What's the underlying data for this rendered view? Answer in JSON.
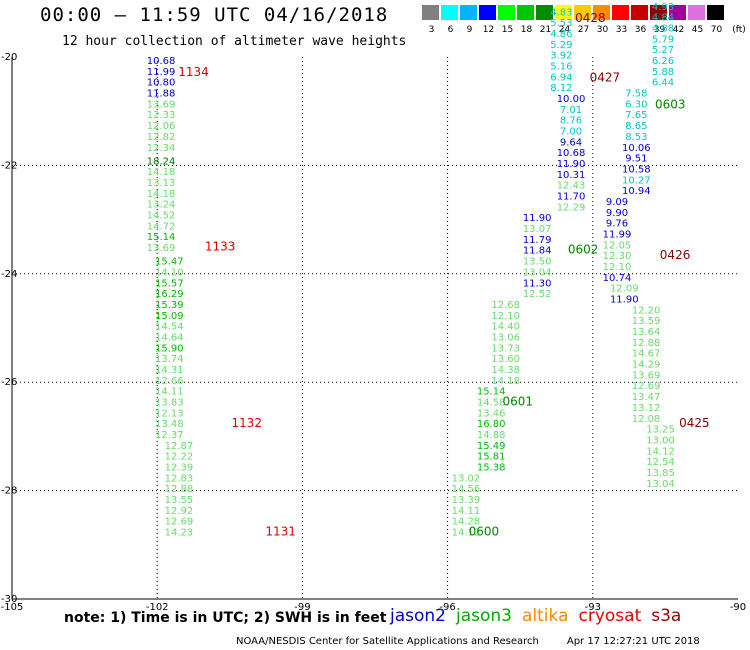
{
  "header": {
    "title": "00:00 – 11:59 UTC 04/16/2018",
    "subtitle": "12 hour collection of altimeter wave heights"
  },
  "color_scale": {
    "unit_label": "(ft)",
    "swatches": [
      {
        "label": "3",
        "color": "#808080"
      },
      {
        "label": "6",
        "color": "#00ffff"
      },
      {
        "label": "9",
        "color": "#00b4ff"
      },
      {
        "label": "12",
        "color": "#0000ff"
      },
      {
        "label": "15",
        "color": "#00ff00"
      },
      {
        "label": "18",
        "color": "#00c800"
      },
      {
        "label": "21",
        "color": "#008c00"
      },
      {
        "label": "24",
        "color": "#ffff00"
      },
      {
        "label": "27",
        "color": "#ffc800"
      },
      {
        "label": "30",
        "color": "#ff8c00"
      },
      {
        "label": "33",
        "color": "#ff0000"
      },
      {
        "label": "36",
        "color": "#c80000"
      },
      {
        "label": "39",
        "color": "#8c0000"
      },
      {
        "label": "42",
        "color": "#a000a0"
      },
      {
        "label": "45",
        "color": "#e070e0"
      },
      {
        "label": "70",
        "color": "#000000"
      }
    ]
  },
  "chart_data": {
    "type": "scatter",
    "xlim": [
      -105,
      -90
    ],
    "ylim": [
      -30,
      -20
    ],
    "x_ticks": [
      "-105",
      "-102",
      "-99",
      "-96",
      "-93",
      "-90"
    ],
    "y_ticks": [
      "-20",
      "-22",
      "-24",
      "-26",
      "-28",
      "-30"
    ],
    "colors": {
      "light": "#66dd66",
      "mid": "#00bb00",
      "dark": "#007700",
      "blue": "#0000cc",
      "cyan": "#00c8c8"
    },
    "tracks": [
      {
        "lon": -101.92,
        "points": [
          {
            "lat": -20.13,
            "v": "10.68",
            "c": "blue"
          },
          {
            "lat": -20.33,
            "v": "11.99",
            "c": "blue"
          },
          {
            "lat": -20.53,
            "v": "10.80",
            "c": "blue"
          },
          {
            "lat": -20.73,
            "v": "11.88",
            "c": "blue"
          },
          {
            "lat": -20.93,
            "v": "13.69",
            "c": "light"
          },
          {
            "lat": -21.13,
            "v": "12.33",
            "c": "light"
          },
          {
            "lat": -21.33,
            "v": "12.06",
            "c": "light"
          },
          {
            "lat": -21.53,
            "v": "12.82",
            "c": "light"
          },
          {
            "lat": -21.73,
            "v": "12.34",
            "c": "light"
          },
          {
            "lat": -21.98,
            "v": "18.24",
            "c": "dark"
          },
          {
            "lat": -22.18,
            "v": "14.18",
            "c": "light"
          },
          {
            "lat": -22.38,
            "v": "13.13",
            "c": "light"
          },
          {
            "lat": -22.58,
            "v": "14.18",
            "c": "light"
          },
          {
            "lat": -22.78,
            "v": "13.24",
            "c": "light"
          },
          {
            "lat": -22.98,
            "v": "14.52",
            "c": "light"
          },
          {
            "lat": -23.18,
            "v": "14.72",
            "c": "light"
          },
          {
            "lat": -23.38,
            "v": "15.14",
            "c": "mid"
          },
          {
            "lat": -23.58,
            "v": "13.69",
            "c": "light"
          }
        ]
      },
      {
        "lon": -101.75,
        "points": [
          {
            "lat": -23.83,
            "v": "15.47",
            "c": "mid"
          },
          {
            "lat": -24.03,
            "v": "14.10",
            "c": "light"
          },
          {
            "lat": -24.23,
            "v": "15.57",
            "c": "mid"
          },
          {
            "lat": -24.43,
            "v": "16.29",
            "c": "mid"
          },
          {
            "lat": -24.63,
            "v": "15.39",
            "c": "mid"
          },
          {
            "lat": -24.83,
            "v": "15.09",
            "c": "mid"
          },
          {
            "lat": -25.03,
            "v": "14.54",
            "c": "light"
          },
          {
            "lat": -25.23,
            "v": "14.64",
            "c": "light"
          },
          {
            "lat": -25.43,
            "v": "15.90",
            "c": "mid"
          },
          {
            "lat": -25.63,
            "v": "13.74",
            "c": "light"
          },
          {
            "lat": -25.83,
            "v": "14.31",
            "c": "light"
          },
          {
            "lat": -26.03,
            "v": "12.66",
            "c": "light"
          },
          {
            "lat": -26.23,
            "v": "14.11",
            "c": "light"
          },
          {
            "lat": -26.43,
            "v": "13.83",
            "c": "light"
          },
          {
            "lat": -26.63,
            "v": "12.13",
            "c": "light"
          },
          {
            "lat": -26.83,
            "v": "13.48",
            "c": "light"
          },
          {
            "lat": -27.03,
            "v": "12.37",
            "c": "light"
          }
        ]
      },
      {
        "lon": -101.55,
        "points": [
          {
            "lat": -27.23,
            "v": "12.87",
            "c": "light"
          },
          {
            "lat": -27.43,
            "v": "12.22",
            "c": "light"
          },
          {
            "lat": -27.63,
            "v": "12.39",
            "c": "light"
          },
          {
            "lat": -27.83,
            "v": "12.83",
            "c": "light"
          },
          {
            "lat": -28.03,
            "v": "12.88",
            "c": "light"
          },
          {
            "lat": -28.23,
            "v": "13.55",
            "c": "light"
          },
          {
            "lat": -28.43,
            "v": "12.92",
            "c": "light"
          },
          {
            "lat": -28.63,
            "v": "12.69",
            "c": "light"
          },
          {
            "lat": -28.83,
            "v": "14.23",
            "c": "light"
          }
        ]
      },
      {
        "lon": -95.62,
        "points": [
          {
            "lat": -28.83,
            "v": "14.12",
            "c": "light"
          },
          {
            "lat": -28.63,
            "v": "14.28",
            "c": "light"
          },
          {
            "lat": -28.43,
            "v": "14.11",
            "c": "light"
          },
          {
            "lat": -28.23,
            "v": "13.39",
            "c": "light"
          },
          {
            "lat": -28.03,
            "v": "14.56",
            "c": "light"
          },
          {
            "lat": -27.83,
            "v": "13.02",
            "c": "light"
          }
        ]
      },
      {
        "lon": -95.1,
        "points": [
          {
            "lat": -27.63,
            "v": "15.38",
            "c": "mid"
          },
          {
            "lat": -27.43,
            "v": "15.81",
            "c": "mid"
          },
          {
            "lat": -27.23,
            "v": "15.49",
            "c": "mid"
          },
          {
            "lat": -27.03,
            "v": "14.88",
            "c": "light"
          },
          {
            "lat": -26.83,
            "v": "16.80",
            "c": "mid"
          },
          {
            "lat": -26.63,
            "v": "13.46",
            "c": "light"
          },
          {
            "lat": -26.43,
            "v": "14.58",
            "c": "light"
          },
          {
            "lat": -26.23,
            "v": "15.14",
            "c": "mid"
          }
        ]
      },
      {
        "lon": -94.8,
        "points": [
          {
            "lat": -26.03,
            "v": "14.18",
            "c": "light"
          },
          {
            "lat": -25.83,
            "v": "14.38",
            "c": "light"
          },
          {
            "lat": -25.63,
            "v": "13.60",
            "c": "light"
          },
          {
            "lat": -25.43,
            "v": "13.73",
            "c": "light"
          },
          {
            "lat": -25.23,
            "v": "13.06",
            "c": "light"
          },
          {
            "lat": -25.03,
            "v": "14.40",
            "c": "light"
          },
          {
            "lat": -24.83,
            "v": "12.10",
            "c": "light"
          },
          {
            "lat": -24.63,
            "v": "12.68",
            "c": "light"
          }
        ]
      },
      {
        "lon": -94.15,
        "points": [
          {
            "lat": -24.43,
            "v": "12.52",
            "c": "light"
          },
          {
            "lat": -24.23,
            "v": "11.30",
            "c": "blue"
          },
          {
            "lat": -24.03,
            "v": "13.04",
            "c": "light"
          },
          {
            "lat": -23.83,
            "v": "13.50",
            "c": "light"
          },
          {
            "lat": -23.63,
            "v": "11.84",
            "c": "blue"
          },
          {
            "lat": -23.43,
            "v": "11.79",
            "c": "blue"
          },
          {
            "lat": -23.23,
            "v": "13.07",
            "c": "light"
          },
          {
            "lat": -23.03,
            "v": "11.90",
            "c": "blue"
          }
        ]
      },
      {
        "lon": -93.45,
        "points": [
          {
            "lat": -22.83,
            "v": "12.29",
            "c": "light"
          },
          {
            "lat": -22.63,
            "v": "11.70",
            "c": "blue"
          },
          {
            "lat": -22.43,
            "v": "12.43",
            "c": "light"
          },
          {
            "lat": -22.23,
            "v": "10.31",
            "c": "blue"
          },
          {
            "lat": -22.03,
            "v": "11.90",
            "c": "blue"
          },
          {
            "lat": -21.83,
            "v": "10.68",
            "c": "blue"
          },
          {
            "lat": -21.63,
            "v": "9.64",
            "c": "blue"
          },
          {
            "lat": -21.43,
            "v": "7.00",
            "c": "cyan"
          },
          {
            "lat": -21.23,
            "v": "8.76",
            "c": "cyan"
          },
          {
            "lat": -21.03,
            "v": "7.01",
            "c": "cyan"
          },
          {
            "lat": -20.83,
            "v": "10.00",
            "c": "blue"
          }
        ]
      },
      {
        "lon": -93.65,
        "points": [
          {
            "lat": -20.63,
            "v": "8.12",
            "c": "cyan"
          },
          {
            "lat": -20.43,
            "v": "6.94",
            "c": "cyan"
          },
          {
            "lat": -20.23,
            "v": "5.16",
            "c": "cyan"
          },
          {
            "lat": -20.03,
            "v": "3.92",
            "c": "cyan"
          },
          {
            "lat": -19.83,
            "v": "5.29",
            "c": "cyan"
          },
          {
            "lat": -19.63,
            "v": "4.86",
            "c": "cyan"
          },
          {
            "lat": -19.43,
            "v": "5.53",
            "c": "cyan"
          },
          {
            "lat": -19.23,
            "v": "4.83",
            "c": "cyan"
          }
        ]
      },
      {
        "lon": -91.55,
        "points": [
          {
            "lat": -19.13,
            "v": "4.93",
            "c": "cyan"
          },
          {
            "lat": -19.33,
            "v": "4.84",
            "c": "cyan"
          },
          {
            "lat": -19.53,
            "v": "4.88",
            "c": "cyan"
          },
          {
            "lat": -19.73,
            "v": "5.79",
            "c": "cyan"
          },
          {
            "lat": -19.93,
            "v": "5.27",
            "c": "cyan"
          },
          {
            "lat": -20.13,
            "v": "6.26",
            "c": "cyan"
          },
          {
            "lat": -20.33,
            "v": "5.88",
            "c": "cyan"
          },
          {
            "lat": -20.53,
            "v": "6.44",
            "c": "cyan"
          }
        ]
      },
      {
        "lon": -92.1,
        "points": [
          {
            "lat": -20.73,
            "v": "7.58",
            "c": "cyan"
          },
          {
            "lat": -20.93,
            "v": "6.30",
            "c": "cyan"
          },
          {
            "lat": -21.13,
            "v": "7.65",
            "c": "cyan"
          },
          {
            "lat": -21.33,
            "v": "8.65",
            "c": "cyan"
          },
          {
            "lat": -21.53,
            "v": "8.53",
            "c": "cyan"
          },
          {
            "lat": -21.73,
            "v": "10.06",
            "c": "blue"
          },
          {
            "lat": -21.93,
            "v": "9.51",
            "c": "blue"
          },
          {
            "lat": -22.13,
            "v": "10.58",
            "c": "blue"
          },
          {
            "lat": -22.33,
            "v": "10.27",
            "c": "cyan"
          },
          {
            "lat": -22.53,
            "v": "10.94",
            "c": "blue"
          }
        ]
      },
      {
        "lon": -92.5,
        "points": [
          {
            "lat": -22.73,
            "v": "9.09",
            "c": "blue"
          },
          {
            "lat": -22.93,
            "v": "9.90",
            "c": "blue"
          },
          {
            "lat": -23.13,
            "v": "9.76",
            "c": "blue"
          },
          {
            "lat": -23.33,
            "v": "11.99",
            "c": "blue"
          },
          {
            "lat": -23.53,
            "v": "12.05",
            "c": "light"
          },
          {
            "lat": -23.73,
            "v": "12.30",
            "c": "light"
          },
          {
            "lat": -23.93,
            "v": "12.10",
            "c": "light"
          },
          {
            "lat": -24.13,
            "v": "10.74",
            "c": "blue"
          }
        ]
      },
      {
        "lon": -92.35,
        "points": [
          {
            "lat": -24.33,
            "v": "12.09",
            "c": "light"
          },
          {
            "lat": -24.53,
            "v": "11.90",
            "c": "blue"
          }
        ]
      },
      {
        "lon": -91.9,
        "points": [
          {
            "lat": -24.73,
            "v": "12.20",
            "c": "light"
          },
          {
            "lat": -24.93,
            "v": "13.59",
            "c": "light"
          },
          {
            "lat": -25.13,
            "v": "13.64",
            "c": "light"
          },
          {
            "lat": -25.33,
            "v": "12.88",
            "c": "light"
          },
          {
            "lat": -25.53,
            "v": "14.67",
            "c": "light"
          },
          {
            "lat": -25.73,
            "v": "14.29",
            "c": "light"
          },
          {
            "lat": -25.93,
            "v": "13.69",
            "c": "light"
          },
          {
            "lat": -26.13,
            "v": "12.69",
            "c": "light"
          },
          {
            "lat": -26.33,
            "v": "13.47",
            "c": "light"
          },
          {
            "lat": -26.53,
            "v": "13.12",
            "c": "light"
          },
          {
            "lat": -26.73,
            "v": "12.08",
            "c": "light"
          }
        ]
      },
      {
        "lon": -91.6,
        "points": [
          {
            "lat": -26.93,
            "v": "13.25",
            "c": "light"
          },
          {
            "lat": -27.13,
            "v": "13.00",
            "c": "light"
          },
          {
            "lat": -27.33,
            "v": "14.12",
            "c": "light"
          },
          {
            "lat": -27.53,
            "v": "12.54",
            "c": "light"
          },
          {
            "lat": -27.73,
            "v": "13.85",
            "c": "light"
          },
          {
            "lat": -27.93,
            "v": "13.04",
            "c": "light"
          }
        ]
      }
    ],
    "track_labels": [
      {
        "text": "1134",
        "lon": -101.25,
        "lat": -20.35,
        "color": "#dd0000"
      },
      {
        "text": "1133",
        "lon": -100.7,
        "lat": -23.57,
        "color": "#dd0000"
      },
      {
        "text": "1132",
        "lon": -100.15,
        "lat": -26.83,
        "color": "#dd0000"
      },
      {
        "text": "1131",
        "lon": -99.45,
        "lat": -28.83,
        "color": "#dd0000"
      },
      {
        "text": "0428",
        "lon": -93.05,
        "lat": -19.35,
        "color": "#880000"
      },
      {
        "text": "0427",
        "lon": -92.75,
        "lat": -20.45,
        "color": "#880000"
      },
      {
        "text": "0426",
        "lon": -91.3,
        "lat": -23.73,
        "color": "#880000"
      },
      {
        "text": "0425",
        "lon": -90.9,
        "lat": -26.83,
        "color": "#880000"
      },
      {
        "text": "0603",
        "lon": -91.4,
        "lat": -20.95,
        "color": "#008800"
      },
      {
        "text": "0602",
        "lon": -93.2,
        "lat": -23.63,
        "color": "#008800"
      },
      {
        "text": "0601",
        "lon": -94.55,
        "lat": -26.43,
        "color": "#008800"
      },
      {
        "text": "0600",
        "lon": -95.25,
        "lat": -28.83,
        "color": "#008800"
      }
    ]
  },
  "footer": {
    "note": "note: 1) Time is in UTC; 2) SWH is in feet",
    "legend": [
      {
        "label": "jason2",
        "color": "#0000cc"
      },
      {
        "label": "jason3",
        "color": "#00aa00"
      },
      {
        "label": "altika",
        "color": "#ff8800"
      },
      {
        "label": "cryosat",
        "color": "#ee0000"
      },
      {
        "label": "s3a",
        "color": "#990000"
      }
    ],
    "credit": "NOAA/NESDIS Center for Satellite Applications and Research",
    "timestamp": "Apr 17 12:27:21 UTC 2018"
  }
}
